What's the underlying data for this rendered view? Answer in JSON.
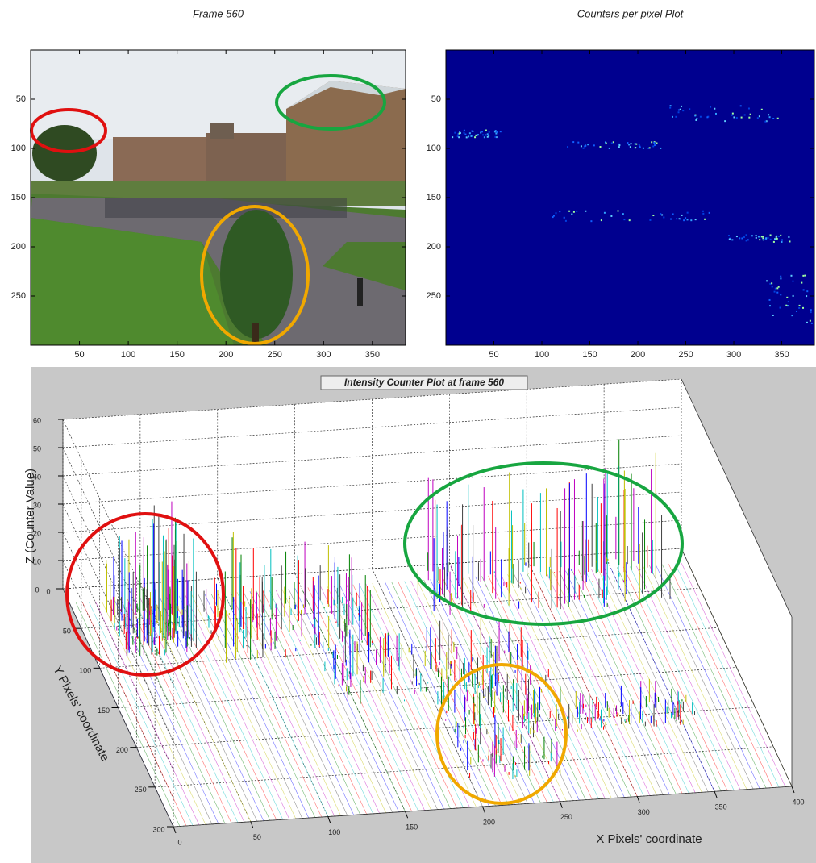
{
  "chart_data": [
    {
      "type": "image",
      "title": "Frame 560",
      "xlim": [
        0,
        384
      ],
      "ylim": [
        0,
        300
      ],
      "y_reversed": true,
      "xticks": [
        50,
        100,
        150,
        200,
        250,
        300,
        350
      ],
      "yticks": [
        50,
        100,
        150,
        200,
        250
      ]
    },
    {
      "type": "heatmap",
      "title": "Counters per pixel Plot",
      "xlim": [
        0,
        384
      ],
      "ylim": [
        0,
        300
      ],
      "y_reversed": true,
      "xticks": [
        50,
        100,
        150,
        200,
        250,
        300,
        350
      ],
      "yticks": [
        50,
        100,
        150,
        200,
        250
      ]
    },
    {
      "type": "surface3d",
      "title": "Intensity Counter Plot at frame 560",
      "xlabel": "X Pixels' coordinate",
      "ylabel": "Y Pixels' coordinate",
      "zlabel": "Z (Counter Value)",
      "xlim": [
        0,
        400
      ],
      "ylim": [
        0,
        300
      ],
      "zlim": [
        0,
        60
      ],
      "xticks": [
        0,
        50,
        100,
        150,
        200,
        250,
        300,
        350,
        400
      ],
      "yticks": [
        0,
        50,
        100,
        150,
        200,
        250,
        300
      ],
      "zticks": [
        0,
        10,
        20,
        30,
        40,
        50,
        60
      ],
      "grid": true
    }
  ]
}
